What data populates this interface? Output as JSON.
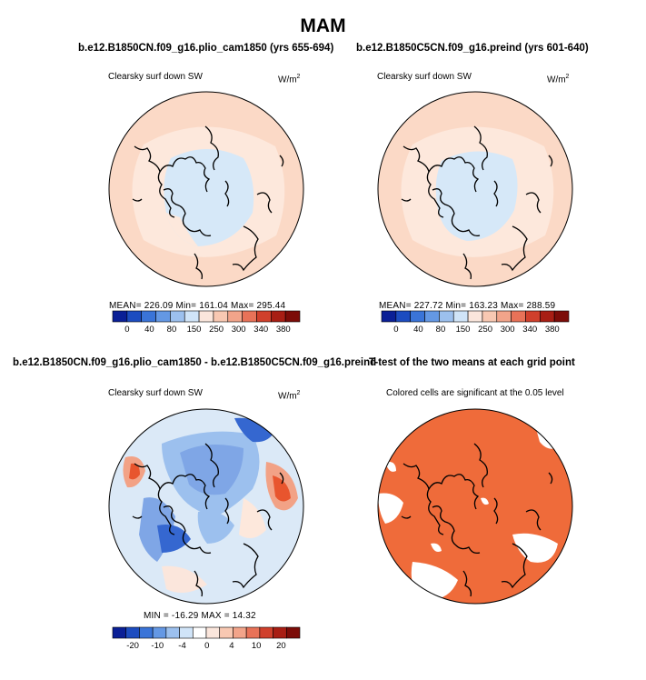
{
  "main_title": "MAM",
  "panels": {
    "top_left": {
      "run_title": "b.e12.B1850CN.f09_g16.plio_cam1850 (yrs 655-694)",
      "field_label": "Clearsky surf down SW",
      "units_base": "W/m",
      "units_exp": "2",
      "stats": "MEAN=  226.09   Min=  161.04   Max=  295.44"
    },
    "top_right": {
      "run_title": "b.e12.B1850C5CN.f09_g16.preind (yrs 601-640)",
      "field_label": "Clearsky surf down SW",
      "units_base": "W/m",
      "units_exp": "2",
      "stats": "MEAN=  227.72   Min=  163.23   Max=  288.59"
    },
    "bottom_left": {
      "run_title": "b.e12.B1850CN.f09_g16.plio_cam1850 - b.e12.B1850C5CN.f09_g16.preind",
      "field_label": "Clearsky surf down SW",
      "units_base": "W/m",
      "units_exp": "2",
      "stats": "MIN =  -16.29  MAX =   14.32"
    },
    "bottom_right": {
      "run_title": "T-test of the two means at each grid point",
      "note": "Colored cells are significant at the 0.05 level"
    }
  },
  "colorbars": {
    "absolute": {
      "colors": [
        "#0a1f96",
        "#1c4cc0",
        "#3a74d8",
        "#6498e4",
        "#9cc0ee",
        "#d0e4f8",
        "#fbe6dc",
        "#f8c8b2",
        "#f2a48a",
        "#e87258",
        "#d0402c",
        "#a81e14",
        "#7c0c08"
      ],
      "tick_labels": [
        "0",
        "40",
        "80",
        "150",
        "250",
        "300",
        "340",
        "380"
      ]
    },
    "difference": {
      "colors": [
        "#0a1f96",
        "#1c4cc0",
        "#3a74d8",
        "#6498e4",
        "#9cc0ee",
        "#d0e4f8",
        "#ffffff",
        "#fbe6dc",
        "#f8c8b2",
        "#f2a48a",
        "#e87258",
        "#d0402c",
        "#a81e14",
        "#7c0c08"
      ],
      "tick_labels": [
        "-20",
        "-10",
        "-4",
        "0",
        "4",
        "10",
        "20"
      ]
    }
  },
  "map_colors": {
    "outer_ring": "#fbd9c6",
    "mid_ring": "#fde8dc",
    "polar_cap": "#d6e8f8",
    "diff_background": "#dbe9f7",
    "diff_negative": "#7fa6e6",
    "diff_strong_negative": "#3567d0",
    "diff_positive": "#f2a286",
    "diff_strong_positive": "#e8552e",
    "ttest_fill": "#ef6b3a"
  }
}
